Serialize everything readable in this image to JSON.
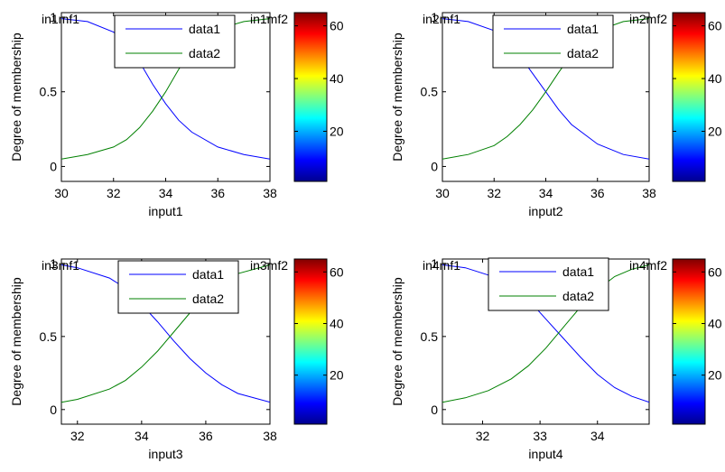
{
  "figure": {
    "background": "#ffffff",
    "axis_color": "#000000",
    "colorbar_colormap": "jet"
  },
  "chart_data": [
    {
      "type": "line",
      "ylabel": "Degree of membership",
      "xlabel": "input1",
      "xlim": [
        30,
        38
      ],
      "ylim": [
        -0.1,
        1.03
      ],
      "xticks": [
        30,
        32,
        34,
        36,
        38
      ],
      "xtick_labels": [
        "30",
        "32",
        "34",
        "36",
        "38"
      ],
      "yticks": [
        0,
        0.5,
        1
      ],
      "ytick_labels": [
        "0",
        "0.5",
        "1"
      ],
      "mf_labels": [
        "in1mf1",
        "in1mf2"
      ],
      "legend": {
        "entries": [
          "data1",
          "data2"
        ],
        "placement": "top-center"
      },
      "series": [
        {
          "name": "data1",
          "color": "#0000ff",
          "x": [
            30,
            31,
            32,
            32.5,
            33,
            33.5,
            34,
            34.5,
            35,
            36,
            37,
            38
          ],
          "values": [
            0.99,
            0.97,
            0.9,
            0.82,
            0.7,
            0.55,
            0.42,
            0.31,
            0.23,
            0.13,
            0.08,
            0.05
          ]
        },
        {
          "name": "data2",
          "color": "#008000",
          "x": [
            30,
            31,
            32,
            32.5,
            33,
            33.5,
            34,
            34.5,
            35,
            36,
            37,
            38
          ],
          "values": [
            0.05,
            0.08,
            0.13,
            0.18,
            0.26,
            0.37,
            0.5,
            0.65,
            0.78,
            0.92,
            0.97,
            0.99
          ]
        }
      ],
      "colorbar": {
        "ticks": [
          20,
          40,
          60
        ],
        "tick_labels": [
          "20",
          "40",
          "60"
        ],
        "range": [
          1,
          65
        ]
      }
    },
    {
      "type": "line",
      "ylabel": "Degree of membership",
      "xlabel": "input2",
      "xlim": [
        30,
        38
      ],
      "ylim": [
        -0.1,
        1.03
      ],
      "xticks": [
        30,
        32,
        34,
        36,
        38
      ],
      "xtick_labels": [
        "30",
        "32",
        "34",
        "36",
        "38"
      ],
      "yticks": [
        0,
        0.5,
        1
      ],
      "ytick_labels": [
        "0",
        "0.5",
        "1"
      ],
      "mf_labels": [
        "in2mf1",
        "in2mf2"
      ],
      "legend": {
        "entries": [
          "data1",
          "data2"
        ],
        "placement": "top-center"
      },
      "series": [
        {
          "name": "data1",
          "color": "#0000ff",
          "x": [
            30,
            31,
            32,
            32.5,
            33,
            33.5,
            34,
            34.5,
            35,
            36,
            37,
            38
          ],
          "values": [
            0.99,
            0.97,
            0.91,
            0.84,
            0.74,
            0.62,
            0.5,
            0.38,
            0.28,
            0.15,
            0.08,
            0.05
          ]
        },
        {
          "name": "data2",
          "color": "#008000",
          "x": [
            30,
            31,
            32,
            32.5,
            33,
            33.5,
            34,
            34.5,
            35,
            36,
            37,
            38
          ],
          "values": [
            0.05,
            0.08,
            0.14,
            0.2,
            0.28,
            0.38,
            0.5,
            0.63,
            0.75,
            0.91,
            0.97,
            0.99
          ]
        }
      ],
      "colorbar": {
        "ticks": [
          20,
          40,
          60
        ],
        "tick_labels": [
          "20",
          "40",
          "60"
        ],
        "range": [
          1,
          65
        ]
      }
    },
    {
      "type": "line",
      "ylabel": "Degree of membership",
      "xlabel": "input3",
      "xlim": [
        31.5,
        38
      ],
      "ylim": [
        -0.1,
        1.03
      ],
      "xticks": [
        32,
        34,
        36,
        38
      ],
      "xtick_labels": [
        "32",
        "34",
        "36",
        "38"
      ],
      "yticks": [
        0,
        0.5,
        1
      ],
      "ytick_labels": [
        "0",
        "0.5",
        "1"
      ],
      "mf_labels": [
        "in3mf1",
        "in3mf2"
      ],
      "legend": {
        "entries": [
          "data1",
          "data2"
        ],
        "placement": "top-center"
      },
      "series": [
        {
          "name": "data1",
          "color": "#0000ff",
          "x": [
            31.5,
            32,
            33,
            33.5,
            34,
            34.5,
            35,
            35.5,
            36,
            36.5,
            37,
            38
          ],
          "values": [
            0.99,
            0.97,
            0.9,
            0.83,
            0.72,
            0.6,
            0.47,
            0.35,
            0.25,
            0.17,
            0.11,
            0.05
          ]
        },
        {
          "name": "data2",
          "color": "#008000",
          "x": [
            31.5,
            32,
            33,
            33.5,
            34,
            34.5,
            35,
            35.5,
            36,
            36.5,
            37,
            38
          ],
          "values": [
            0.05,
            0.07,
            0.14,
            0.2,
            0.29,
            0.4,
            0.53,
            0.66,
            0.77,
            0.87,
            0.93,
            0.99
          ]
        }
      ],
      "colorbar": {
        "ticks": [
          20,
          40,
          60
        ],
        "tick_labels": [
          "20",
          "40",
          "60"
        ],
        "range": [
          1,
          65
        ]
      }
    },
    {
      "type": "line",
      "ylabel": "Degree of membership",
      "xlabel": "input4",
      "xlim": [
        31.3,
        34.9
      ],
      "ylim": [
        -0.1,
        1.03
      ],
      "xticks": [
        32,
        33,
        34
      ],
      "xtick_labels": [
        "32",
        "33",
        "34"
      ],
      "yticks": [
        0,
        0.5,
        1
      ],
      "ytick_labels": [
        "0",
        "0.5",
        "1"
      ],
      "mf_labels": [
        "in4mf1",
        "in4mf2"
      ],
      "legend": {
        "entries": [
          "data1",
          "data2"
        ],
        "placement": "top-center"
      },
      "series": [
        {
          "name": "data1",
          "color": "#0000ff",
          "x": [
            31.3,
            31.7,
            32.1,
            32.5,
            32.8,
            33.1,
            33.4,
            33.7,
            34.0,
            34.3,
            34.6,
            34.9
          ],
          "values": [
            0.99,
            0.97,
            0.92,
            0.84,
            0.75,
            0.62,
            0.49,
            0.36,
            0.24,
            0.15,
            0.09,
            0.05
          ]
        },
        {
          "name": "data2",
          "color": "#008000",
          "x": [
            31.3,
            31.7,
            32.1,
            32.5,
            32.8,
            33.1,
            33.4,
            33.7,
            34.0,
            34.3,
            34.6,
            34.9
          ],
          "values": [
            0.05,
            0.08,
            0.13,
            0.21,
            0.3,
            0.42,
            0.56,
            0.7,
            0.82,
            0.91,
            0.96,
            0.99
          ]
        }
      ],
      "colorbar": {
        "ticks": [
          20,
          40,
          60
        ],
        "tick_labels": [
          "20",
          "40",
          "60"
        ],
        "range": [
          1,
          65
        ]
      }
    }
  ]
}
